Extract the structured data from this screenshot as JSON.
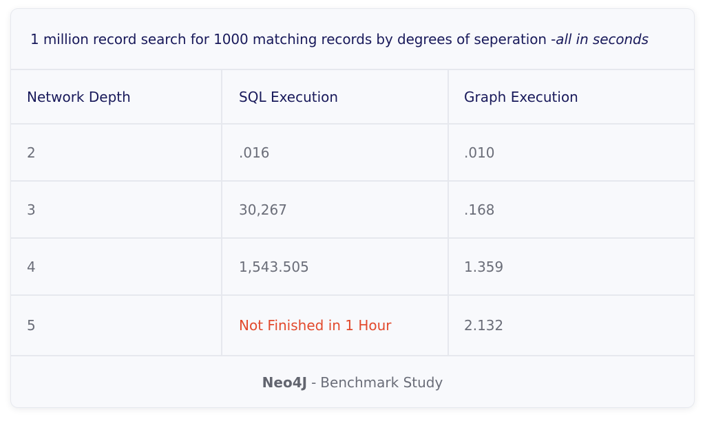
{
  "title": {
    "main": "1 million record search for 1000 matching records by degrees of seperation - ",
    "italic": "all in seconds"
  },
  "table": {
    "headers": [
      "Network Depth",
      "SQL Execution",
      "Graph Execution"
    ],
    "rows": [
      [
        "2",
        ".016",
        ".010"
      ],
      [
        "3",
        "30,267",
        ".168"
      ],
      [
        "4",
        "1,543.505",
        "1.359"
      ],
      [
        "5",
        "Not Finished in 1 Hour",
        "2.132"
      ]
    ]
  },
  "footer": {
    "source": "Neo4J",
    "separator": "-",
    "label": "Benchmark Study"
  },
  "colors": {
    "title": "#18195a",
    "cell_text": "#6a6d78",
    "highlight": "#e2492c",
    "border": "#e6e8ee",
    "background": "#f8f9fc"
  }
}
